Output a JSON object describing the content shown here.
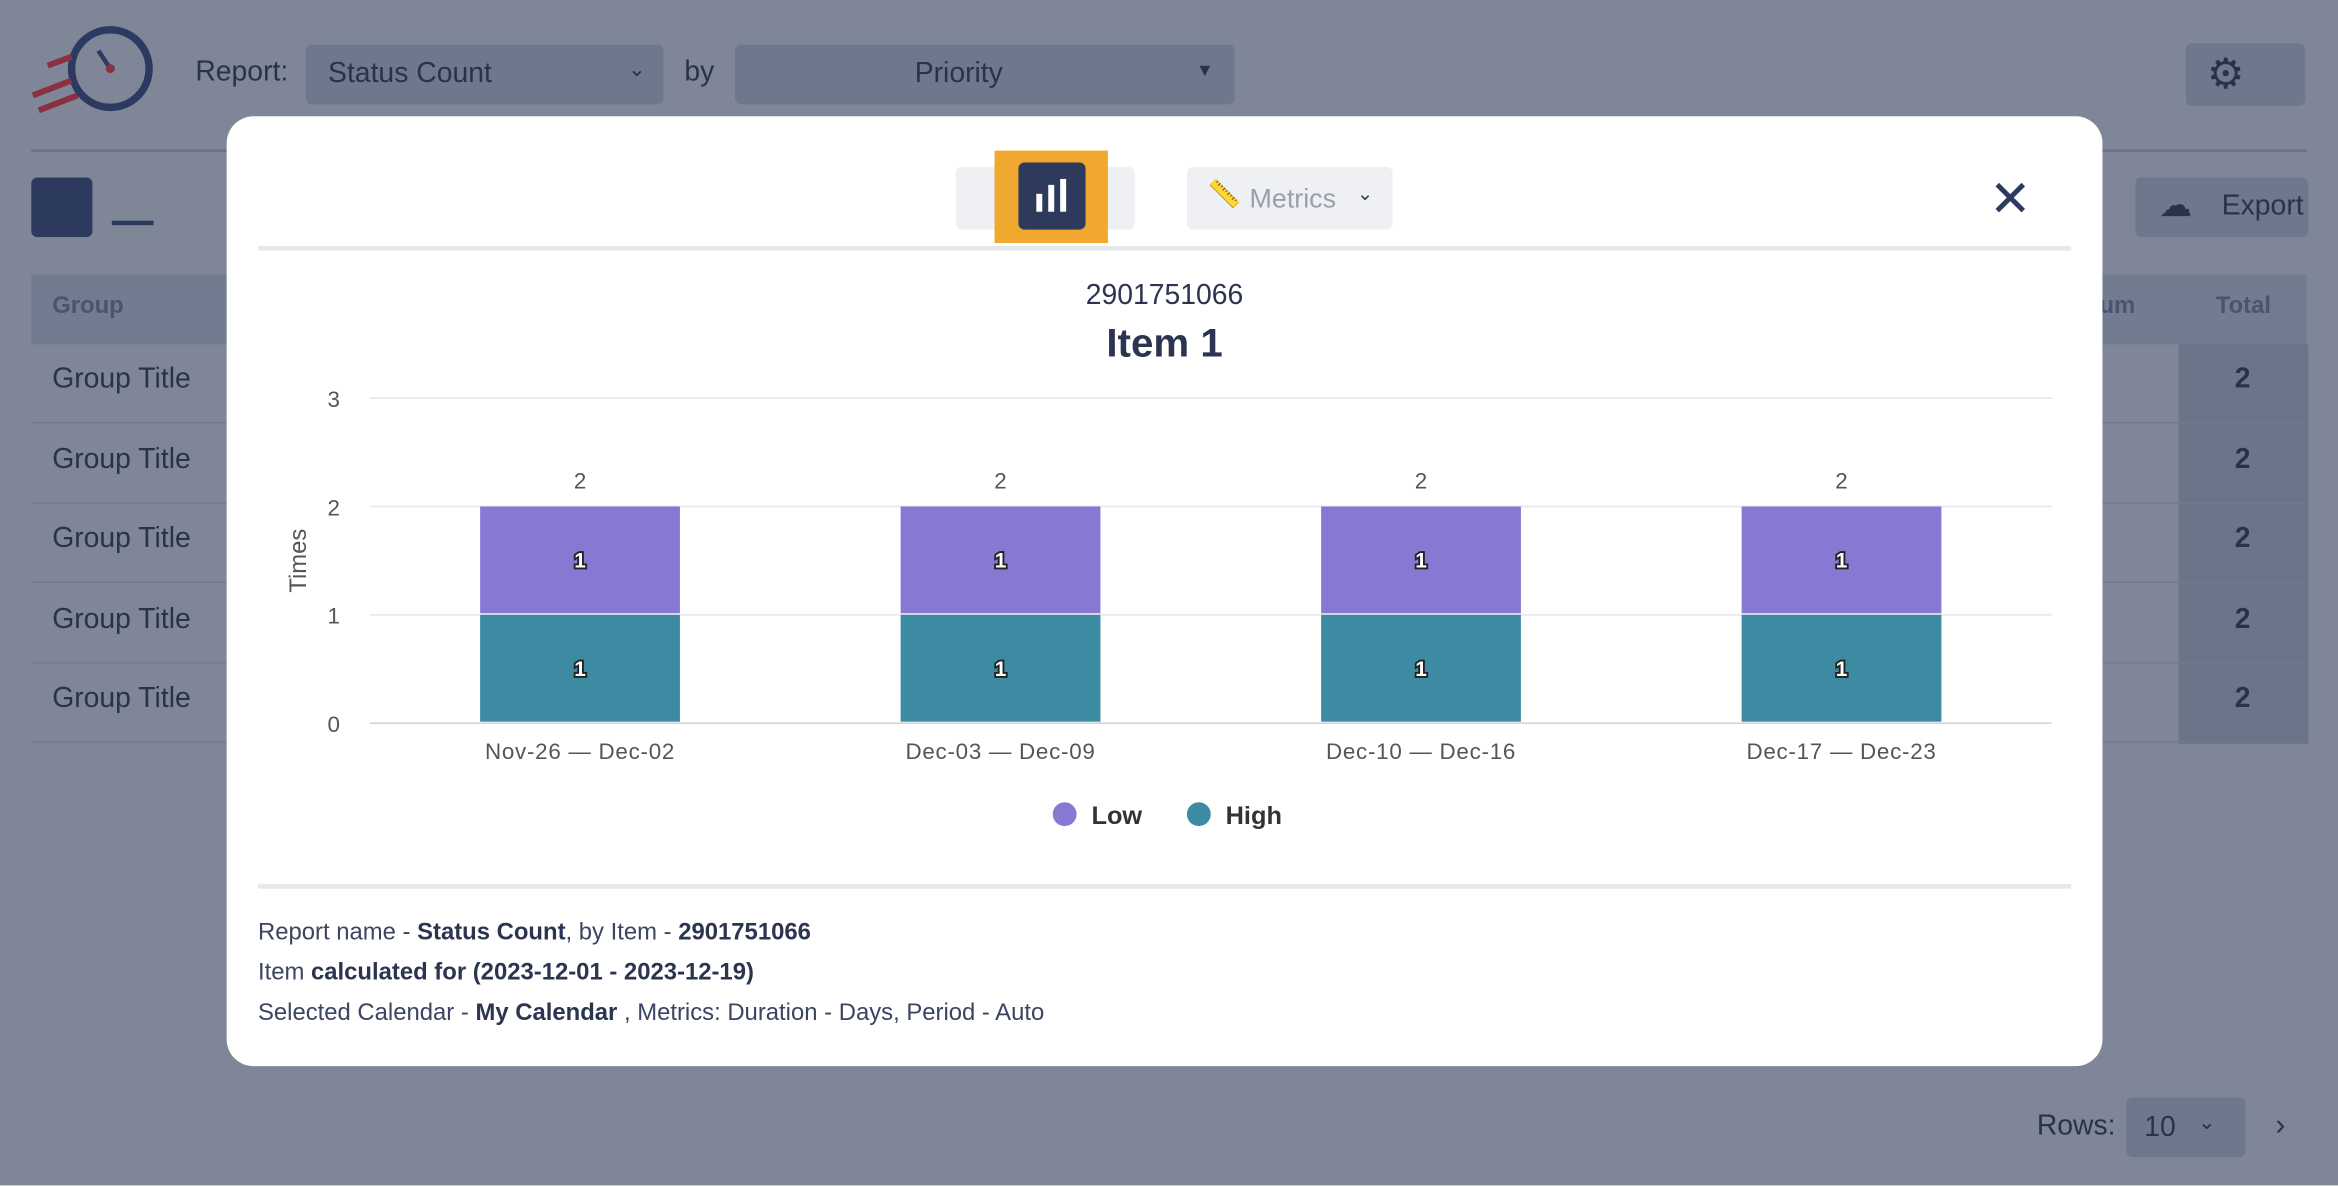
{
  "header": {
    "report_label": "Report:",
    "report_value": "Status Count",
    "by_label": "by",
    "group_value": "Priority"
  },
  "toolbar": {
    "export": "Export"
  },
  "table": {
    "columns": [
      "Group",
      "um",
      "Total"
    ],
    "rows": [
      [
        "Group Title",
        2
      ],
      [
        "Group Title",
        2
      ],
      [
        "Group Title",
        2
      ],
      [
        "Group Title",
        2
      ],
      [
        "Group Title",
        2
      ]
    ]
  },
  "pagination": {
    "rows_label": "Rows:",
    "rows_value": "10"
  },
  "modal": {
    "metrics": "Metrics"
  },
  "chart_data": {
    "type": "stacked_bar",
    "subtitle": "2901751066",
    "title": "Item 1",
    "y_label": "Times",
    "categories": [
      "Nov-26 — Dec-02",
      "Dec-03 — Dec-09",
      "Dec-10 — Dec-16",
      "Dec-17 — Dec-23"
    ],
    "series": [
      {
        "name": "High",
        "color": "#3d8ba3",
        "values": [
          1,
          1,
          1,
          1
        ]
      },
      {
        "name": "Low",
        "color": "#8878d4",
        "values": [
          1,
          1,
          1,
          1
        ]
      }
    ],
    "totals": [
      2,
      2,
      2,
      2
    ],
    "ylim": [
      0,
      3
    ],
    "yticks": [
      0,
      1,
      2,
      3
    ],
    "grid": true,
    "legend": "bottom"
  },
  "footer": {
    "lines": [
      [
        "Report name - ",
        "Status Count",
        ", by Item - ",
        "2901751066"
      ],
      [
        "Item ",
        "calculated for (2023-12-01 - 2023-12-19)"
      ],
      [
        "Selected Calendar - ",
        "My Calendar",
        " , Metrics: Duration - Days, Period - Auto"
      ]
    ]
  }
}
